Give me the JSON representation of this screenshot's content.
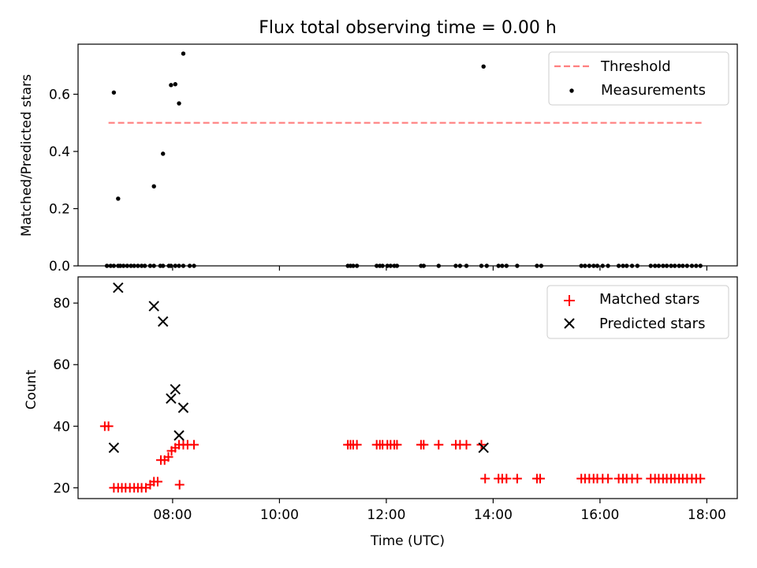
{
  "figure": {
    "title": "Flux total observing time = 0.00 h"
  },
  "chart_data": [
    {
      "type": "scatter",
      "panel": "top",
      "ylabel": "Matched/Predicted stars",
      "xlim": [
        6.23,
        18.57
      ],
      "ylim": [
        0.0,
        0.775
      ],
      "yticks": [
        0.0,
        0.2,
        0.4,
        0.6
      ],
      "ytick_labels": [
        "0.0",
        "0.2",
        "0.4",
        "0.6"
      ],
      "legend_position": "top-right",
      "threshold": {
        "name": "Threshold",
        "value": 0.5,
        "x_range": [
          6.8,
          17.9
        ],
        "color": "#ff7f7f",
        "style": "dashed"
      },
      "series": [
        {
          "name": "Measurements",
          "color": "#000000",
          "marker": "dot",
          "x": [
            6.77,
            6.84,
            6.9,
            6.98,
            7.02,
            7.08,
            7.15,
            7.22,
            7.28,
            7.35,
            7.42,
            7.48,
            7.58,
            7.65,
            7.77,
            7.82,
            7.93,
            7.97,
            8.05,
            8.12,
            8.2,
            8.32,
            8.4,
            11.28,
            11.33,
            11.38,
            11.45,
            11.82,
            11.88,
            11.93,
            12.02,
            12.08,
            12.15,
            12.2,
            12.65,
            12.7,
            12.98,
            13.3,
            13.38,
            13.5,
            13.78,
            13.88,
            14.1,
            14.17,
            14.25,
            14.45,
            14.82,
            14.9,
            15.65,
            15.72,
            15.8,
            15.88,
            15.95,
            16.05,
            16.15,
            16.35,
            16.43,
            16.5,
            16.6,
            16.7,
            16.95,
            17.03,
            17.1,
            17.18,
            17.25,
            17.33,
            17.4,
            17.48,
            17.55,
            17.63,
            17.72,
            17.8,
            17.88,
            6.9,
            6.98,
            7.65,
            7.82,
            7.97,
            8.05,
            8.12,
            8.2,
            13.82
          ],
          "y": [
            0,
            0,
            0,
            0,
            0,
            0,
            0,
            0,
            0,
            0,
            0,
            0,
            0,
            0,
            0,
            0,
            0,
            0,
            0,
            0,
            0,
            0,
            0,
            0,
            0,
            0,
            0,
            0,
            0,
            0,
            0,
            0,
            0,
            0,
            0,
            0,
            0,
            0,
            0,
            0,
            0,
            0,
            0,
            0,
            0,
            0,
            0,
            0,
            0,
            0,
            0,
            0,
            0,
            0,
            0,
            0,
            0,
            0,
            0,
            0,
            0,
            0,
            0,
            0,
            0,
            0,
            0,
            0,
            0,
            0,
            0,
            0,
            0,
            0.606,
            0.235,
            0.278,
            0.392,
            0.632,
            0.635,
            0.568,
            0.742,
            0.697
          ]
        }
      ]
    },
    {
      "type": "scatter",
      "panel": "bottom",
      "xlabel": "Time (UTC)",
      "ylabel": "Count",
      "xlim": [
        6.23,
        18.57
      ],
      "ylim": [
        16.5,
        88.5
      ],
      "xticks": [
        8,
        10,
        12,
        14,
        16,
        18
      ],
      "xtick_labels": [
        "08:00",
        "10:00",
        "12:00",
        "14:00",
        "16:00",
        "18:00"
      ],
      "yticks": [
        20,
        40,
        60,
        80
      ],
      "ytick_labels": [
        "20",
        "40",
        "60",
        "80"
      ],
      "legend_position": "top-right",
      "series": [
        {
          "name": "Matched stars",
          "color": "#ff0000",
          "marker": "plus",
          "x": [
            6.73,
            6.8,
            6.9,
            6.98,
            7.05,
            7.12,
            7.2,
            7.28,
            7.35,
            7.42,
            7.5,
            7.58,
            7.65,
            7.72,
            7.78,
            7.85,
            7.92,
            7.98,
            8.05,
            8.12,
            8.2,
            8.28,
            8.4,
            11.28,
            11.33,
            11.38,
            11.45,
            11.82,
            11.88,
            11.93,
            12.02,
            12.08,
            12.15,
            12.2,
            12.65,
            12.7,
            12.98,
            13.3,
            13.38,
            13.5,
            13.78,
            13.85,
            14.1,
            14.17,
            14.25,
            14.45,
            14.82,
            14.88,
            15.65,
            15.72,
            15.8,
            15.88,
            15.95,
            16.05,
            16.15,
            16.35,
            16.43,
            16.5,
            16.6,
            16.7,
            16.95,
            17.03,
            17.1,
            17.18,
            17.25,
            17.33,
            17.4,
            17.48,
            17.55,
            17.63,
            17.72,
            17.8,
            17.88,
            8.13
          ],
          "y": [
            40,
            40,
            20,
            20,
            20,
            20,
            20,
            20,
            20,
            20,
            20,
            21,
            22,
            22,
            29,
            29,
            30,
            32,
            33,
            34,
            34,
            34,
            34,
            34,
            34,
            34,
            34,
            34,
            34,
            34,
            34,
            34,
            34,
            34,
            34,
            34,
            34,
            34,
            34,
            34,
            34,
            23,
            23,
            23,
            23,
            23,
            23,
            23,
            23,
            23,
            23,
            23,
            23,
            23,
            23,
            23,
            23,
            23,
            23,
            23,
            23,
            23,
            23,
            23,
            23,
            23,
            23,
            23,
            23,
            23,
            23,
            23,
            23,
            21
          ]
        },
        {
          "name": "Predicted stars",
          "color": "#000000",
          "marker": "x",
          "x": [
            6.9,
            6.98,
            7.65,
            7.82,
            7.97,
            8.05,
            8.12,
            8.2,
            13.82
          ],
          "y": [
            33,
            85,
            79,
            74,
            49,
            52,
            37,
            46,
            33
          ]
        }
      ]
    }
  ]
}
